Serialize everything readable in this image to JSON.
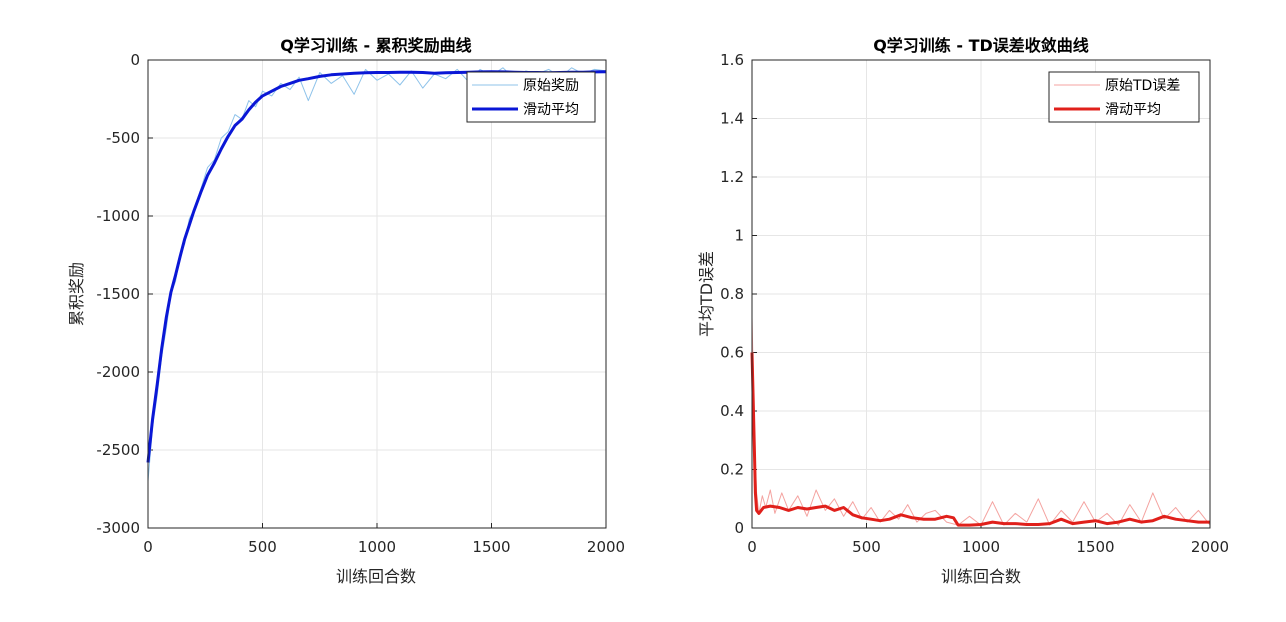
{
  "chart_data": [
    {
      "type": "line",
      "title": "Q学习训练 - 累积奖励曲线",
      "xlabel": "训练回合数",
      "ylabel": "累积奖励",
      "xlim": [
        0,
        2000
      ],
      "ylim": [
        -3000,
        0
      ],
      "xticks": [
        0,
        500,
        1000,
        1500,
        2000
      ],
      "xtick_labels": [
        "0",
        "500",
        "1000",
        "1500",
        "2000"
      ],
      "yticks": [
        -3000,
        -2500,
        -2000,
        -1500,
        -1000,
        -500,
        0
      ],
      "ytick_labels": [
        "-3000",
        "-2500",
        "-2000",
        "-1500",
        "-1000",
        "-500",
        "0"
      ],
      "grid": true,
      "legend_position": "top-right",
      "series": [
        {
          "name": "原始奖励",
          "color": "#8fc3ea",
          "style": "thin",
          "x": [
            0,
            20,
            40,
            60,
            80,
            100,
            120,
            140,
            160,
            180,
            200,
            230,
            260,
            290,
            320,
            350,
            380,
            410,
            440,
            470,
            500,
            540,
            580,
            620,
            660,
            700,
            750,
            800,
            850,
            900,
            950,
            1000,
            1050,
            1100,
            1150,
            1200,
            1250,
            1300,
            1350,
            1400,
            1450,
            1500,
            1550,
            1600,
            1650,
            1700,
            1750,
            1800,
            1850,
            1900,
            1950,
            2000
          ],
          "y": [
            -2700,
            -2350,
            -2150,
            -1900,
            -1720,
            -1500,
            -1420,
            -1250,
            -1180,
            -1020,
            -960,
            -830,
            -690,
            -640,
            -500,
            -460,
            -350,
            -380,
            -260,
            -300,
            -200,
            -230,
            -150,
            -190,
            -110,
            -260,
            -80,
            -150,
            -100,
            -220,
            -60,
            -130,
            -90,
            -160,
            -70,
            -180,
            -90,
            -120,
            -60,
            -140,
            -60,
            -100,
            -50,
            -120,
            -70,
            -90,
            -60,
            -110,
            -50,
            -90,
            -60,
            -70
          ]
        },
        {
          "name": "滑动平均",
          "color": "#0a17d6",
          "style": "thick",
          "x": [
            0,
            20,
            40,
            60,
            80,
            100,
            120,
            140,
            160,
            180,
            200,
            230,
            260,
            290,
            320,
            350,
            380,
            410,
            440,
            470,
            500,
            540,
            580,
            620,
            660,
            700,
            750,
            800,
            850,
            900,
            950,
            1000,
            1050,
            1100,
            1150,
            1200,
            1250,
            1300,
            1350,
            1400,
            1450,
            1500,
            1550,
            1600,
            1650,
            1700,
            1750,
            1800,
            1850,
            1900,
            1950,
            2000
          ],
          "y": [
            -2580,
            -2300,
            -2080,
            -1850,
            -1650,
            -1490,
            -1380,
            -1260,
            -1150,
            -1060,
            -970,
            -850,
            -740,
            -660,
            -570,
            -490,
            -420,
            -380,
            -320,
            -270,
            -230,
            -200,
            -170,
            -150,
            -130,
            -120,
            -105,
            -95,
            -90,
            -85,
            -82,
            -80,
            -80,
            -78,
            -78,
            -80,
            -85,
            -82,
            -80,
            -78,
            -76,
            -75,
            -76,
            -78,
            -80,
            -80,
            -82,
            -80,
            -78,
            -78,
            -76,
            -75
          ]
        }
      ]
    },
    {
      "type": "line",
      "title": "Q学习训练 - TD误差收敛曲线",
      "xlabel": "训练回合数",
      "ylabel": "平均TD误差",
      "xlim": [
        0,
        2000
      ],
      "ylim": [
        0,
        1.6
      ],
      "xticks": [
        0,
        500,
        1000,
        1500,
        2000
      ],
      "xtick_labels": [
        "0",
        "500",
        "1000",
        "1500",
        "2000"
      ],
      "yticks": [
        0,
        0.2,
        0.4,
        0.6,
        0.8,
        1,
        1.2,
        1.4,
        1.6
      ],
      "ytick_labels": [
        "0",
        "0.2",
        "0.4",
        "0.6",
        "0.8",
        "1",
        "1.2",
        "1.4",
        "1.6"
      ],
      "grid": true,
      "legend_position": "top-right",
      "series": [
        {
          "name": "原始TD误差",
          "color": "#f4a3a0",
          "style": "thin",
          "x": [
            0,
            5,
            10,
            20,
            30,
            45,
            60,
            80,
            100,
            130,
            160,
            200,
            240,
            280,
            320,
            360,
            400,
            440,
            480,
            520,
            560,
            600,
            640,
            680,
            720,
            760,
            800,
            850,
            900,
            950,
            1000,
            1050,
            1100,
            1150,
            1200,
            1250,
            1300,
            1350,
            1400,
            1450,
            1500,
            1550,
            1600,
            1650,
            1700,
            1750,
            1800,
            1850,
            1900,
            1950,
            2000
          ],
          "y": [
            0.72,
            0.55,
            0.3,
            0.12,
            0.05,
            0.11,
            0.07,
            0.13,
            0.05,
            0.12,
            0.06,
            0.11,
            0.04,
            0.13,
            0.06,
            0.1,
            0.04,
            0.09,
            0.03,
            0.07,
            0.02,
            0.06,
            0.03,
            0.08,
            0.02,
            0.05,
            0.06,
            0.02,
            0.01,
            0.04,
            0.01,
            0.09,
            0.01,
            0.05,
            0.02,
            0.1,
            0.01,
            0.06,
            0.02,
            0.09,
            0.02,
            0.05,
            0.01,
            0.08,
            0.02,
            0.12,
            0.03,
            0.07,
            0.02,
            0.06,
            0.01
          ]
        },
        {
          "name": "滑动平均",
          "color": "#e0201b",
          "style": "thick",
          "x": [
            0,
            5,
            10,
            15,
            20,
            30,
            50,
            80,
            120,
            160,
            200,
            240,
            280,
            320,
            360,
            400,
            440,
            480,
            520,
            560,
            600,
            650,
            700,
            750,
            800,
            850,
            880,
            900,
            950,
            1000,
            1050,
            1100,
            1150,
            1200,
            1250,
            1300,
            1350,
            1400,
            1450,
            1500,
            1550,
            1600,
            1650,
            1700,
            1750,
            1800,
            1850,
            1900,
            1950,
            2000
          ],
          "y": [
            0.6,
            0.45,
            0.28,
            0.12,
            0.06,
            0.05,
            0.07,
            0.075,
            0.07,
            0.06,
            0.07,
            0.065,
            0.07,
            0.075,
            0.06,
            0.07,
            0.045,
            0.035,
            0.03,
            0.025,
            0.03,
            0.045,
            0.035,
            0.03,
            0.03,
            0.04,
            0.035,
            0.01,
            0.01,
            0.012,
            0.02,
            0.015,
            0.015,
            0.012,
            0.012,
            0.015,
            0.03,
            0.015,
            0.02,
            0.025,
            0.015,
            0.02,
            0.03,
            0.02,
            0.025,
            0.04,
            0.03,
            0.025,
            0.02,
            0.02
          ]
        }
      ]
    }
  ]
}
